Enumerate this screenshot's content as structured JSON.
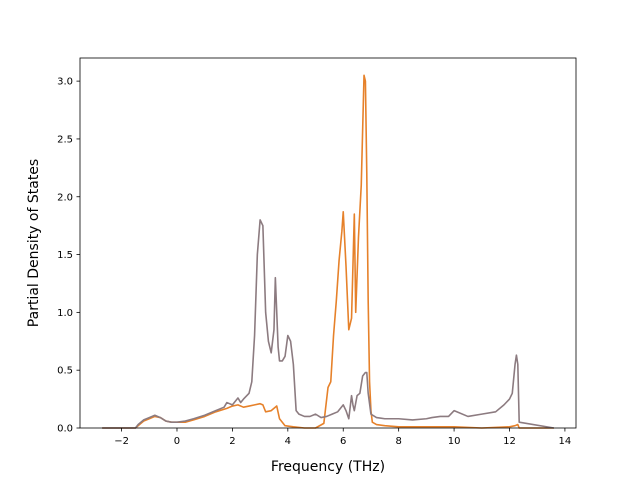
{
  "chart_data": {
    "type": "line",
    "title": "",
    "xlabel": "Frequency (THz)",
    "ylabel": "Partial Density of States",
    "xlim": [
      -3.5,
      14.4
    ],
    "ylim": [
      0,
      3.2
    ],
    "xticks": [
      -2,
      0,
      2,
      4,
      6,
      8,
      10,
      12,
      14
    ],
    "xtick_labels": [
      "−2",
      "0",
      "2",
      "4",
      "6",
      "8",
      "10",
      "12",
      "14"
    ],
    "yticks": [
      0.0,
      0.5,
      1.0,
      1.5,
      2.0,
      2.5,
      3.0
    ],
    "ytick_labels": [
      "0.0",
      "0.5",
      "1.0",
      "1.5",
      "2.0",
      "2.5",
      "3.0"
    ],
    "grid": false,
    "legend": false,
    "series": [
      {
        "color": "#e6812a",
        "x": [
          -2.7,
          -1.5,
          -1.4,
          -1.2,
          -1.0,
          -0.8,
          -0.6,
          -0.4,
          -0.2,
          0.0,
          0.3,
          0.6,
          1.0,
          1.4,
          1.8,
          2.0,
          2.2,
          2.4,
          2.6,
          2.8,
          3.0,
          3.1,
          3.2,
          3.4,
          3.6,
          3.7,
          3.9,
          4.2,
          4.6,
          5.0,
          5.3,
          5.45,
          5.55,
          5.65,
          5.75,
          5.85,
          5.95,
          6.0,
          6.1,
          6.2,
          6.3,
          6.4,
          6.45,
          6.55,
          6.65,
          6.75,
          6.8,
          6.85,
          6.9,
          6.95,
          7.0,
          7.05,
          7.2,
          7.5,
          8.0,
          9.0,
          10.0,
          11.0,
          12.0,
          12.2,
          12.3,
          12.35,
          13.6
        ],
        "y": [
          0.0,
          0.0,
          0.02,
          0.06,
          0.08,
          0.1,
          0.09,
          0.06,
          0.05,
          0.05,
          0.05,
          0.07,
          0.1,
          0.14,
          0.17,
          0.19,
          0.2,
          0.18,
          0.19,
          0.2,
          0.21,
          0.2,
          0.14,
          0.15,
          0.19,
          0.08,
          0.02,
          0.01,
          0.0,
          0.0,
          0.04,
          0.35,
          0.4,
          0.8,
          1.1,
          1.45,
          1.7,
          1.87,
          1.4,
          0.85,
          0.95,
          1.85,
          1.0,
          1.65,
          2.1,
          3.05,
          3.0,
          2.2,
          1.1,
          0.4,
          0.15,
          0.05,
          0.03,
          0.02,
          0.01,
          0.01,
          0.01,
          0.0,
          0.01,
          0.02,
          0.03,
          0.0,
          0.0
        ]
      },
      {
        "color": "#8c7b80",
        "x": [
          -2.7,
          -1.5,
          -1.4,
          -1.2,
          -1.0,
          -0.8,
          -0.6,
          -0.4,
          -0.2,
          0.0,
          0.3,
          0.6,
          1.0,
          1.4,
          1.7,
          1.8,
          2.0,
          2.2,
          2.3,
          2.4,
          2.6,
          2.7,
          2.8,
          2.9,
          3.0,
          3.1,
          3.2,
          3.3,
          3.4,
          3.5,
          3.55,
          3.6,
          3.65,
          3.7,
          3.8,
          3.9,
          4.0,
          4.1,
          4.2,
          4.3,
          4.4,
          4.6,
          4.8,
          5.0,
          5.2,
          5.4,
          5.6,
          5.8,
          6.0,
          6.1,
          6.2,
          6.3,
          6.35,
          6.4,
          6.5,
          6.6,
          6.7,
          6.8,
          6.85,
          6.9,
          7.0,
          7.2,
          7.5,
          8.0,
          8.5,
          9.0,
          9.2,
          9.5,
          9.8,
          10.0,
          10.5,
          11.0,
          11.5,
          11.8,
          12.0,
          12.1,
          12.2,
          12.25,
          12.3,
          12.35,
          13.6
        ],
        "y": [
          0.0,
          0.0,
          0.03,
          0.07,
          0.09,
          0.11,
          0.09,
          0.06,
          0.05,
          0.05,
          0.06,
          0.08,
          0.11,
          0.15,
          0.18,
          0.22,
          0.2,
          0.26,
          0.22,
          0.25,
          0.3,
          0.4,
          0.8,
          1.5,
          1.8,
          1.75,
          1.0,
          0.75,
          0.65,
          0.85,
          1.3,
          1.0,
          0.7,
          0.58,
          0.58,
          0.62,
          0.8,
          0.75,
          0.55,
          0.15,
          0.12,
          0.1,
          0.1,
          0.12,
          0.09,
          0.1,
          0.12,
          0.14,
          0.2,
          0.15,
          0.08,
          0.28,
          0.2,
          0.15,
          0.28,
          0.3,
          0.45,
          0.48,
          0.48,
          0.3,
          0.12,
          0.09,
          0.08,
          0.08,
          0.07,
          0.08,
          0.09,
          0.1,
          0.1,
          0.15,
          0.1,
          0.12,
          0.14,
          0.2,
          0.25,
          0.3,
          0.55,
          0.63,
          0.55,
          0.05,
          0.0
        ]
      }
    ]
  }
}
